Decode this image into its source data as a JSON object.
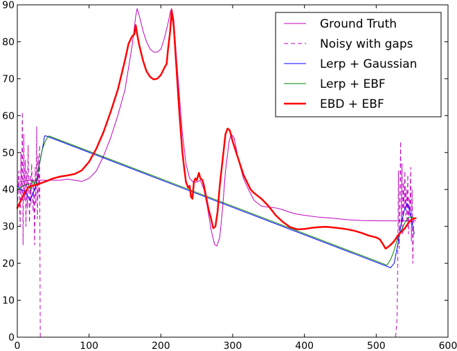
{
  "chart_data": {
    "type": "line",
    "xlim": [
      0,
      600
    ],
    "ylim": [
      0,
      90
    ],
    "xticks": [
      0,
      100,
      200,
      300,
      400,
      500,
      600
    ],
    "yticks": [
      0,
      10,
      20,
      30,
      40,
      50,
      60,
      70,
      80,
      90
    ],
    "grid": false,
    "legend_position": "top-right",
    "series": [
      {
        "name": "Ground Truth",
        "color": "#bf00bf",
        "style": "solid",
        "width": 1,
        "points": [
          [
            0,
            42
          ],
          [
            20,
            42.5
          ],
          [
            40,
            42.5
          ],
          [
            60,
            42.5
          ],
          [
            70,
            42.8
          ],
          [
            80,
            42.5
          ],
          [
            90,
            42.2
          ],
          [
            100,
            43
          ],
          [
            110,
            45
          ],
          [
            120,
            49
          ],
          [
            130,
            54
          ],
          [
            140,
            60
          ],
          [
            150,
            67
          ],
          [
            160,
            79
          ],
          [
            165,
            87
          ],
          [
            167,
            89
          ],
          [
            170,
            87
          ],
          [
            175,
            83
          ],
          [
            180,
            80
          ],
          [
            185,
            78
          ],
          [
            190,
            77.2
          ],
          [
            195,
            77.2
          ],
          [
            200,
            78
          ],
          [
            205,
            81
          ],
          [
            210,
            85
          ],
          [
            213,
            88
          ],
          [
            215,
            89
          ],
          [
            218,
            86
          ],
          [
            222,
            75
          ],
          [
            226,
            65
          ],
          [
            230,
            55
          ],
          [
            235,
            47
          ],
          [
            240,
            43
          ],
          [
            245,
            42
          ],
          [
            250,
            42
          ],
          [
            255,
            42.5
          ],
          [
            260,
            40
          ],
          [
            265,
            35
          ],
          [
            270,
            29
          ],
          [
            275,
            25
          ],
          [
            278,
            24.7
          ],
          [
            282,
            27
          ],
          [
            286,
            35
          ],
          [
            290,
            45
          ],
          [
            295,
            53
          ],
          [
            298,
            55
          ],
          [
            302,
            54
          ],
          [
            308,
            48
          ],
          [
            315,
            43
          ],
          [
            322,
            40
          ],
          [
            330,
            37
          ],
          [
            340,
            35.5
          ],
          [
            350,
            35.2
          ],
          [
            360,
            35
          ],
          [
            370,
            34.5
          ],
          [
            380,
            33.8
          ],
          [
            390,
            33.3
          ],
          [
            400,
            33
          ],
          [
            420,
            32.5
          ],
          [
            440,
            32.2
          ],
          [
            460,
            31.8
          ],
          [
            480,
            31.6
          ],
          [
            500,
            31.5
          ],
          [
            520,
            31.5
          ],
          [
            540,
            31.5
          ],
          [
            555,
            31.5
          ]
        ]
      },
      {
        "name": "Noisy with gaps",
        "color": "#bf00bf",
        "style": "dashed",
        "width": 1,
        "points": [
          [
            0,
            35
          ],
          [
            2,
            45
          ],
          [
            4,
            30
          ],
          [
            5,
            50
          ],
          [
            6,
            38
          ],
          [
            7,
            61
          ],
          [
            8,
            25
          ],
          [
            9,
            55
          ],
          [
            10,
            37
          ],
          [
            11,
            48
          ],
          [
            12,
            30
          ],
          [
            13,
            45
          ],
          [
            14,
            35
          ],
          [
            15,
            52
          ],
          [
            16,
            40
          ],
          [
            17,
            31
          ],
          [
            18,
            44
          ],
          [
            19,
            36
          ],
          [
            20,
            47
          ],
          [
            21,
            40
          ],
          [
            22,
            34
          ],
          [
            23,
            42
          ],
          [
            24,
            25
          ],
          [
            25,
            46
          ],
          [
            26,
            36
          ],
          [
            27,
            57
          ],
          [
            28,
            32
          ],
          [
            29,
            49
          ],
          [
            30,
            38
          ],
          [
            31,
            52
          ],
          [
            32,
            0
          ],
          [
            60,
            0
          ],
          [
            100,
            0
          ],
          [
            200,
            0
          ],
          [
            300,
            0
          ],
          [
            400,
            0
          ],
          [
            500,
            0
          ],
          [
            527,
            0
          ],
          [
            529,
            5
          ],
          [
            530,
            20
          ],
          [
            531,
            45
          ],
          [
            532,
            24
          ],
          [
            533,
            38
          ],
          [
            534,
            53
          ],
          [
            535,
            30
          ],
          [
            536,
            47
          ],
          [
            537,
            28
          ],
          [
            538,
            42
          ],
          [
            539,
            35
          ],
          [
            540,
            45
          ],
          [
            541,
            33
          ],
          [
            542,
            40
          ],
          [
            543,
            30
          ],
          [
            544,
            44
          ],
          [
            545,
            28
          ],
          [
            546,
            38
          ],
          [
            547,
            33
          ],
          [
            548,
            46
          ],
          [
            549,
            26
          ],
          [
            550,
            40
          ],
          [
            551,
            20
          ],
          [
            552,
            32
          ]
        ]
      },
      {
        "name": "Lerp + Gaussian",
        "color": "#0000ff",
        "style": "solid",
        "width": 1,
        "points": [
          [
            0,
            41
          ],
          [
            5,
            40
          ],
          [
            10,
            39.5
          ],
          [
            15,
            38
          ],
          [
            18,
            37
          ],
          [
            22,
            39
          ],
          [
            26,
            41
          ],
          [
            30,
            46
          ],
          [
            35,
            51
          ],
          [
            38,
            54.5
          ],
          [
            40,
            54.5
          ],
          [
            520,
            18.8
          ],
          [
            525,
            20
          ],
          [
            530,
            25
          ],
          [
            535,
            31
          ],
          [
            540,
            35
          ],
          [
            543,
            36.2
          ],
          [
            547,
            34
          ],
          [
            550,
            31
          ],
          [
            553,
            28
          ]
        ]
      },
      {
        "name": "Lerp + EBF",
        "color": "#008000",
        "style": "solid",
        "width": 1,
        "points": [
          [
            0,
            40
          ],
          [
            8,
            41
          ],
          [
            15,
            41.5
          ],
          [
            18,
            40
          ],
          [
            22,
            42.5
          ],
          [
            26,
            41
          ],
          [
            30,
            46
          ],
          [
            35,
            51
          ],
          [
            40,
            53.5
          ],
          [
            44,
            54.5
          ],
          [
            515,
            19.5
          ],
          [
            520,
            21
          ],
          [
            525,
            23.5
          ],
          [
            530,
            27
          ],
          [
            535,
            29
          ],
          [
            540,
            31
          ],
          [
            545,
            32.5
          ],
          [
            550,
            32.5
          ],
          [
            553,
            32.3
          ]
        ]
      },
      {
        "name": "EBD + EBF",
        "color": "#ff0000",
        "style": "solid",
        "width": 2.5,
        "points": [
          [
            0,
            35
          ],
          [
            5,
            37
          ],
          [
            10,
            39
          ],
          [
            15,
            40.5
          ],
          [
            20,
            41
          ],
          [
            25,
            41.2
          ],
          [
            30,
            41.5
          ],
          [
            40,
            42.2
          ],
          [
            50,
            43
          ],
          [
            60,
            43.5
          ],
          [
            70,
            43.8
          ],
          [
            80,
            44.2
          ],
          [
            90,
            45.2
          ],
          [
            100,
            47.5
          ],
          [
            110,
            51
          ],
          [
            120,
            55.5
          ],
          [
            130,
            61
          ],
          [
            140,
            67
          ],
          [
            150,
            75
          ],
          [
            155,
            79.5
          ],
          [
            160,
            81.5
          ],
          [
            163,
            82
          ],
          [
            165,
            84.5
          ],
          [
            167,
            82
          ],
          [
            170,
            79
          ],
          [
            175,
            75
          ],
          [
            180,
            72
          ],
          [
            185,
            70.5
          ],
          [
            190,
            69.8
          ],
          [
            195,
            70
          ],
          [
            200,
            71
          ],
          [
            205,
            73
          ],
          [
            208,
            74
          ],
          [
            210,
            78
          ],
          [
            213,
            83
          ],
          [
            215,
            88.5
          ],
          [
            218,
            84
          ],
          [
            222,
            72
          ],
          [
            226,
            60
          ],
          [
            230,
            50
          ],
          [
            233,
            45
          ],
          [
            235,
            42
          ],
          [
            238,
            40.5
          ],
          [
            240,
            41
          ],
          [
            242,
            38
          ],
          [
            244,
            37.5
          ],
          [
            246,
            42
          ],
          [
            248,
            43
          ],
          [
            250,
            42.5
          ],
          [
            253,
            44.5
          ],
          [
            255,
            43
          ],
          [
            258,
            42.5
          ],
          [
            260,
            41
          ],
          [
            263,
            38
          ],
          [
            266,
            35
          ],
          [
            270,
            32
          ],
          [
            273,
            29.5
          ],
          [
            276,
            30
          ],
          [
            279,
            34
          ],
          [
            282,
            41
          ],
          [
            286,
            48
          ],
          [
            290,
            55
          ],
          [
            293,
            56.5
          ],
          [
            296,
            56
          ],
          [
            300,
            53
          ],
          [
            305,
            50
          ],
          [
            310,
            47
          ],
          [
            315,
            44
          ],
          [
            320,
            42
          ],
          [
            325,
            40
          ],
          [
            330,
            39
          ],
          [
            340,
            37.5
          ],
          [
            350,
            35.5
          ],
          [
            360,
            33
          ],
          [
            370,
            31.2
          ],
          [
            380,
            29.8
          ],
          [
            390,
            29.2
          ],
          [
            400,
            29.3
          ],
          [
            410,
            29.6
          ],
          [
            420,
            29.8
          ],
          [
            430,
            29.9
          ],
          [
            440,
            29.7
          ],
          [
            450,
            29.5
          ],
          [
            460,
            29.2
          ],
          [
            470,
            28.8
          ],
          [
            480,
            28.2
          ],
          [
            490,
            27.5
          ],
          [
            500,
            27
          ],
          [
            505,
            26.5
          ],
          [
            510,
            25
          ],
          [
            513,
            24
          ],
          [
            515,
            24.2
          ],
          [
            520,
            25
          ],
          [
            525,
            26
          ],
          [
            530,
            27.5
          ],
          [
            535,
            28.5
          ],
          [
            540,
            29.5
          ],
          [
            545,
            31
          ],
          [
            550,
            32
          ],
          [
            555,
            32.2
          ]
        ]
      }
    ]
  }
}
